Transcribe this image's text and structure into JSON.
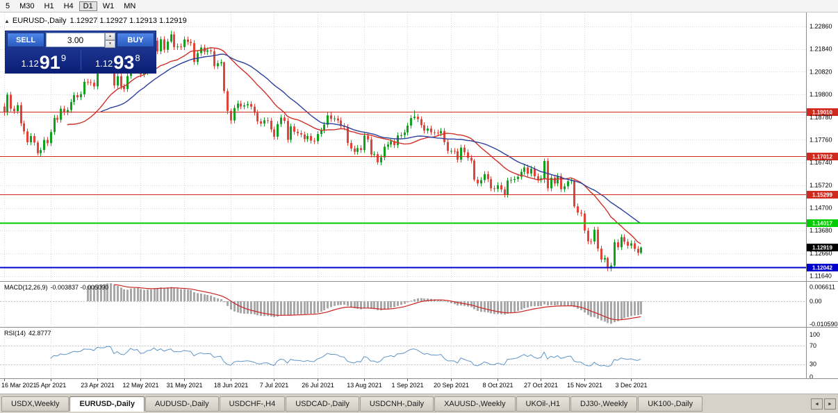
{
  "toolbar": {
    "timeframes": [
      "5",
      "M30",
      "H1",
      "H4",
      "D1",
      "W1",
      "MN"
    ],
    "active": "D1"
  },
  "icons": {
    "collapse": "▲",
    "spin_up": "▲",
    "spin_down": "▼",
    "scroll_left": "◄",
    "scroll_right": "►"
  },
  "chart_header": {
    "title": "EURUSD-,Daily",
    "ohlc": "1.12927 1.12927 1.12913 1.12919"
  },
  "trade_panel": {
    "sell_label": "SELL",
    "buy_label": "BUY",
    "volume": "3.00",
    "sell": {
      "prefix": "1.12",
      "big": "91",
      "pip": "9"
    },
    "buy": {
      "prefix": "1.12",
      "big": "93",
      "pip": "8"
    }
  },
  "indicators": {
    "macd": {
      "label": "MACD(12,26,9)",
      "values": "-0.003837 -0.005090"
    },
    "rsi": {
      "label": "RSI(14)",
      "value": "42.8777"
    }
  },
  "tabs": {
    "items": [
      "USDX,Weekly",
      "EURUSD-,Daily",
      "AUDUSD-,Daily",
      "USDCHF-,H4",
      "USDCAD-,Daily",
      "USDCNH-,Daily",
      "XAUUSD-,Weekly",
      "UKOil-,H1",
      "DJ30-,Weekly",
      "UK100-,Daily"
    ],
    "active_index": 1
  },
  "colors": {
    "bull": "#12a11e",
    "bear": "#e04438",
    "ma_fast": "#cf2f25",
    "ma_slow": "#2c3f9e",
    "macd_hist": "#a8a8a8",
    "macd_signal": "#cc2222",
    "rsi_line": "#5e94c8",
    "grid": "#d9d9d9",
    "axis_line": "#8c8c8c",
    "hline_red": "#d02a1e",
    "hline_green": "#00cc00",
    "hline_blue": "#0000cc",
    "current_tag": "#000000"
  },
  "chart_data": {
    "type": "candlestick",
    "symbol": "EURUSD",
    "timeframe": "Daily",
    "current_ohlc": {
      "open": "1.12927",
      "high": "1.12927",
      "low": "1.12913",
      "close": "1.12919"
    },
    "y_axis_labels": [
      "1.22860",
      "1.21840",
      "1.20820",
      "1.19800",
      "1.18780",
      "1.17760",
      "1.16740",
      "1.15720",
      "1.14700",
      "1.13680",
      "1.12660",
      "1.11640"
    ],
    "x_labels": [
      "16 Mar 2021",
      "5 Apr 2021",
      "23 Apr 2021",
      "12 May 2021",
      "31 May 2021",
      "18 Jun 2021",
      "7 Jul 2021",
      "26 Jul 2021",
      "13 Aug 2021",
      "1 Sep 2021",
      "20 Sep 2021",
      "8 Oct 2021",
      "27 Oct 2021",
      "15 Nov 2021",
      "3 Dec 2021"
    ],
    "x_label_indices": [
      0,
      14,
      28,
      41,
      54,
      68,
      81,
      94,
      108,
      121,
      134,
      148,
      161,
      174,
      188
    ],
    "open0": 1.1926,
    "default_wick": 0.0013,
    "closes": [
      1.1899,
      1.1979,
      1.1916,
      1.1905,
      1.1932,
      1.185,
      1.1814,
      1.1765,
      1.1793,
      1.1764,
      1.1716,
      1.173,
      1.1776,
      1.1761,
      1.1811,
      1.1875,
      1.1866,
      1.1916,
      1.1899,
      1.191,
      1.1946,
      1.1977,
      1.1967,
      1.1981,
      1.2037,
      1.2035,
      1.2033,
      1.2016,
      1.2097,
      1.2089,
      1.2091,
      1.2124,
      1.2121,
      1.202,
      1.2062,
      1.2015,
      1.2004,
      1.2063,
      1.2163,
      1.213,
      1.2147,
      1.207,
      1.208,
      1.2144,
      1.2153,
      1.2222,
      1.2174,
      1.2228,
      1.2181,
      1.2218,
      1.225,
      1.2193,
      1.2196,
      1.2193,
      1.2227,
      1.2216,
      1.2211,
      1.2126,
      1.2166,
      1.2191,
      1.2172,
      1.2178,
      1.2174,
      1.2107,
      1.212,
      1.2125,
      1.1995,
      1.1906,
      1.1863,
      1.1919,
      1.1939,
      1.1926,
      1.1931,
      1.1937,
      1.1925,
      1.1898,
      1.1859,
      1.1849,
      1.1864,
      1.1862,
      1.1823,
      1.179,
      1.1847,
      1.1876,
      1.1861,
      1.1776,
      1.1836,
      1.1812,
      1.1806,
      1.18,
      1.1779,
      1.1793,
      1.1772,
      1.177,
      1.1802,
      1.1818,
      1.1844,
      1.1886,
      1.187,
      1.1872,
      1.1863,
      1.1838,
      1.1833,
      1.1762,
      1.1737,
      1.1722,
      1.1739,
      1.173,
      1.1795,
      1.1778,
      1.171,
      1.1712,
      1.1675,
      1.1697,
      1.1745,
      1.1755,
      1.177,
      1.1752,
      1.1796,
      1.1797,
      1.1809,
      1.184,
      1.1874,
      1.188,
      1.1869,
      1.1842,
      1.1817,
      1.1827,
      1.181,
      1.1808,
      1.1805,
      1.1816,
      1.1766,
      1.1726,
      1.1726,
      1.1725,
      1.1687,
      1.1741,
      1.172,
      1.1695,
      1.1683,
      1.1597,
      1.158,
      1.1595,
      1.1622,
      1.1599,
      1.1558,
      1.1555,
      1.1572,
      1.1553,
      1.153,
      1.1593,
      1.1596,
      1.16,
      1.161,
      1.1632,
      1.1652,
      1.1624,
      1.1646,
      1.1612,
      1.1596,
      1.1603,
      1.1681,
      1.1558,
      1.1606,
      1.158,
      1.1613,
      1.1554,
      1.1567,
      1.159,
      1.1593,
      1.1477,
      1.1449,
      1.1445,
      1.1368,
      1.132,
      1.1319,
      1.1372,
      1.1287,
      1.1238,
      1.1245,
      1.1198,
      1.1211,
      1.1316,
      1.1293,
      1.1339,
      1.1318,
      1.13,
      1.1311,
      1.1286,
      1.1268,
      1.1292
    ],
    "ohlc_overrides": {
      "0": [
        1.1926,
        1.1941,
        1.1884,
        1.1899
      ],
      "1": [
        1.1899,
        1.1989,
        1.1886,
        1.1979
      ],
      "10": [
        1.1764,
        1.1772,
        1.1706,
        1.1716
      ],
      "11": [
        1.1716,
        1.1741,
        1.17,
        1.173
      ],
      "45": [
        1.2153,
        1.2233,
        1.2144,
        1.2222
      ],
      "50": [
        1.2218,
        1.2266,
        1.2212,
        1.225
      ],
      "66": [
        1.2125,
        1.2127,
        1.1985,
        1.1995
      ],
      "67": [
        1.1995,
        1.2007,
        1.1891,
        1.1906
      ],
      "68": [
        1.1906,
        1.1916,
        1.1847,
        1.1863
      ],
      "112": [
        1.1712,
        1.1722,
        1.1664,
        1.1675
      ],
      "123": [
        1.1874,
        1.1909,
        1.1866,
        1.188
      ],
      "141": [
        1.1683,
        1.169,
        1.1589,
        1.1597
      ],
      "162": [
        1.1603,
        1.1692,
        1.1582,
        1.1681
      ],
      "171": [
        1.1593,
        1.1596,
        1.147,
        1.1477
      ],
      "181": [
        1.1245,
        1.125,
        1.1186,
        1.1198
      ],
      "191": [
        1.1268,
        1.1297,
        1.1262,
        1.1292
      ]
    },
    "moving_averages": [
      {
        "period": 20,
        "color_key": "ma_fast"
      },
      {
        "period": 30,
        "color_key": "ma_slow"
      }
    ],
    "horizontal_lines": [
      {
        "price": 1.1901,
        "label": "1.19010",
        "color_key": "hline_red",
        "width": 1
      },
      {
        "price": 1.17012,
        "label": "1.17012",
        "color_key": "hline_red",
        "width": 1
      },
      {
        "price": 1.15299,
        "label": "1.15299",
        "color_key": "hline_red",
        "width": 1
      },
      {
        "price": 1.14017,
        "label": "1.14017",
        "color_key": "hline_green",
        "width": 2
      },
      {
        "price": 1.12042,
        "label": "1.12042",
        "color_key": "hline_blue",
        "width": 2
      }
    ],
    "current_price": {
      "price": 1.12919,
      "label": "1.12919"
    },
    "macd": {
      "fast": 12,
      "slow": 26,
      "signal": 9,
      "axis_labels": [
        {
          "value": 0.006611,
          "text": "0.006611"
        },
        {
          "value": 0,
          "text": "0.00"
        },
        {
          "value": -0.01059,
          "text": "-0.010590"
        }
      ]
    },
    "rsi": {
      "period": 14,
      "axis_labels": [
        {
          "value": 100,
          "text": "100"
        },
        {
          "value": 70,
          "text": "70"
        },
        {
          "value": 30,
          "text": "30"
        },
        {
          "value": 0,
          "text": "0"
        }
      ],
      "levels": [
        70,
        30
      ]
    }
  }
}
